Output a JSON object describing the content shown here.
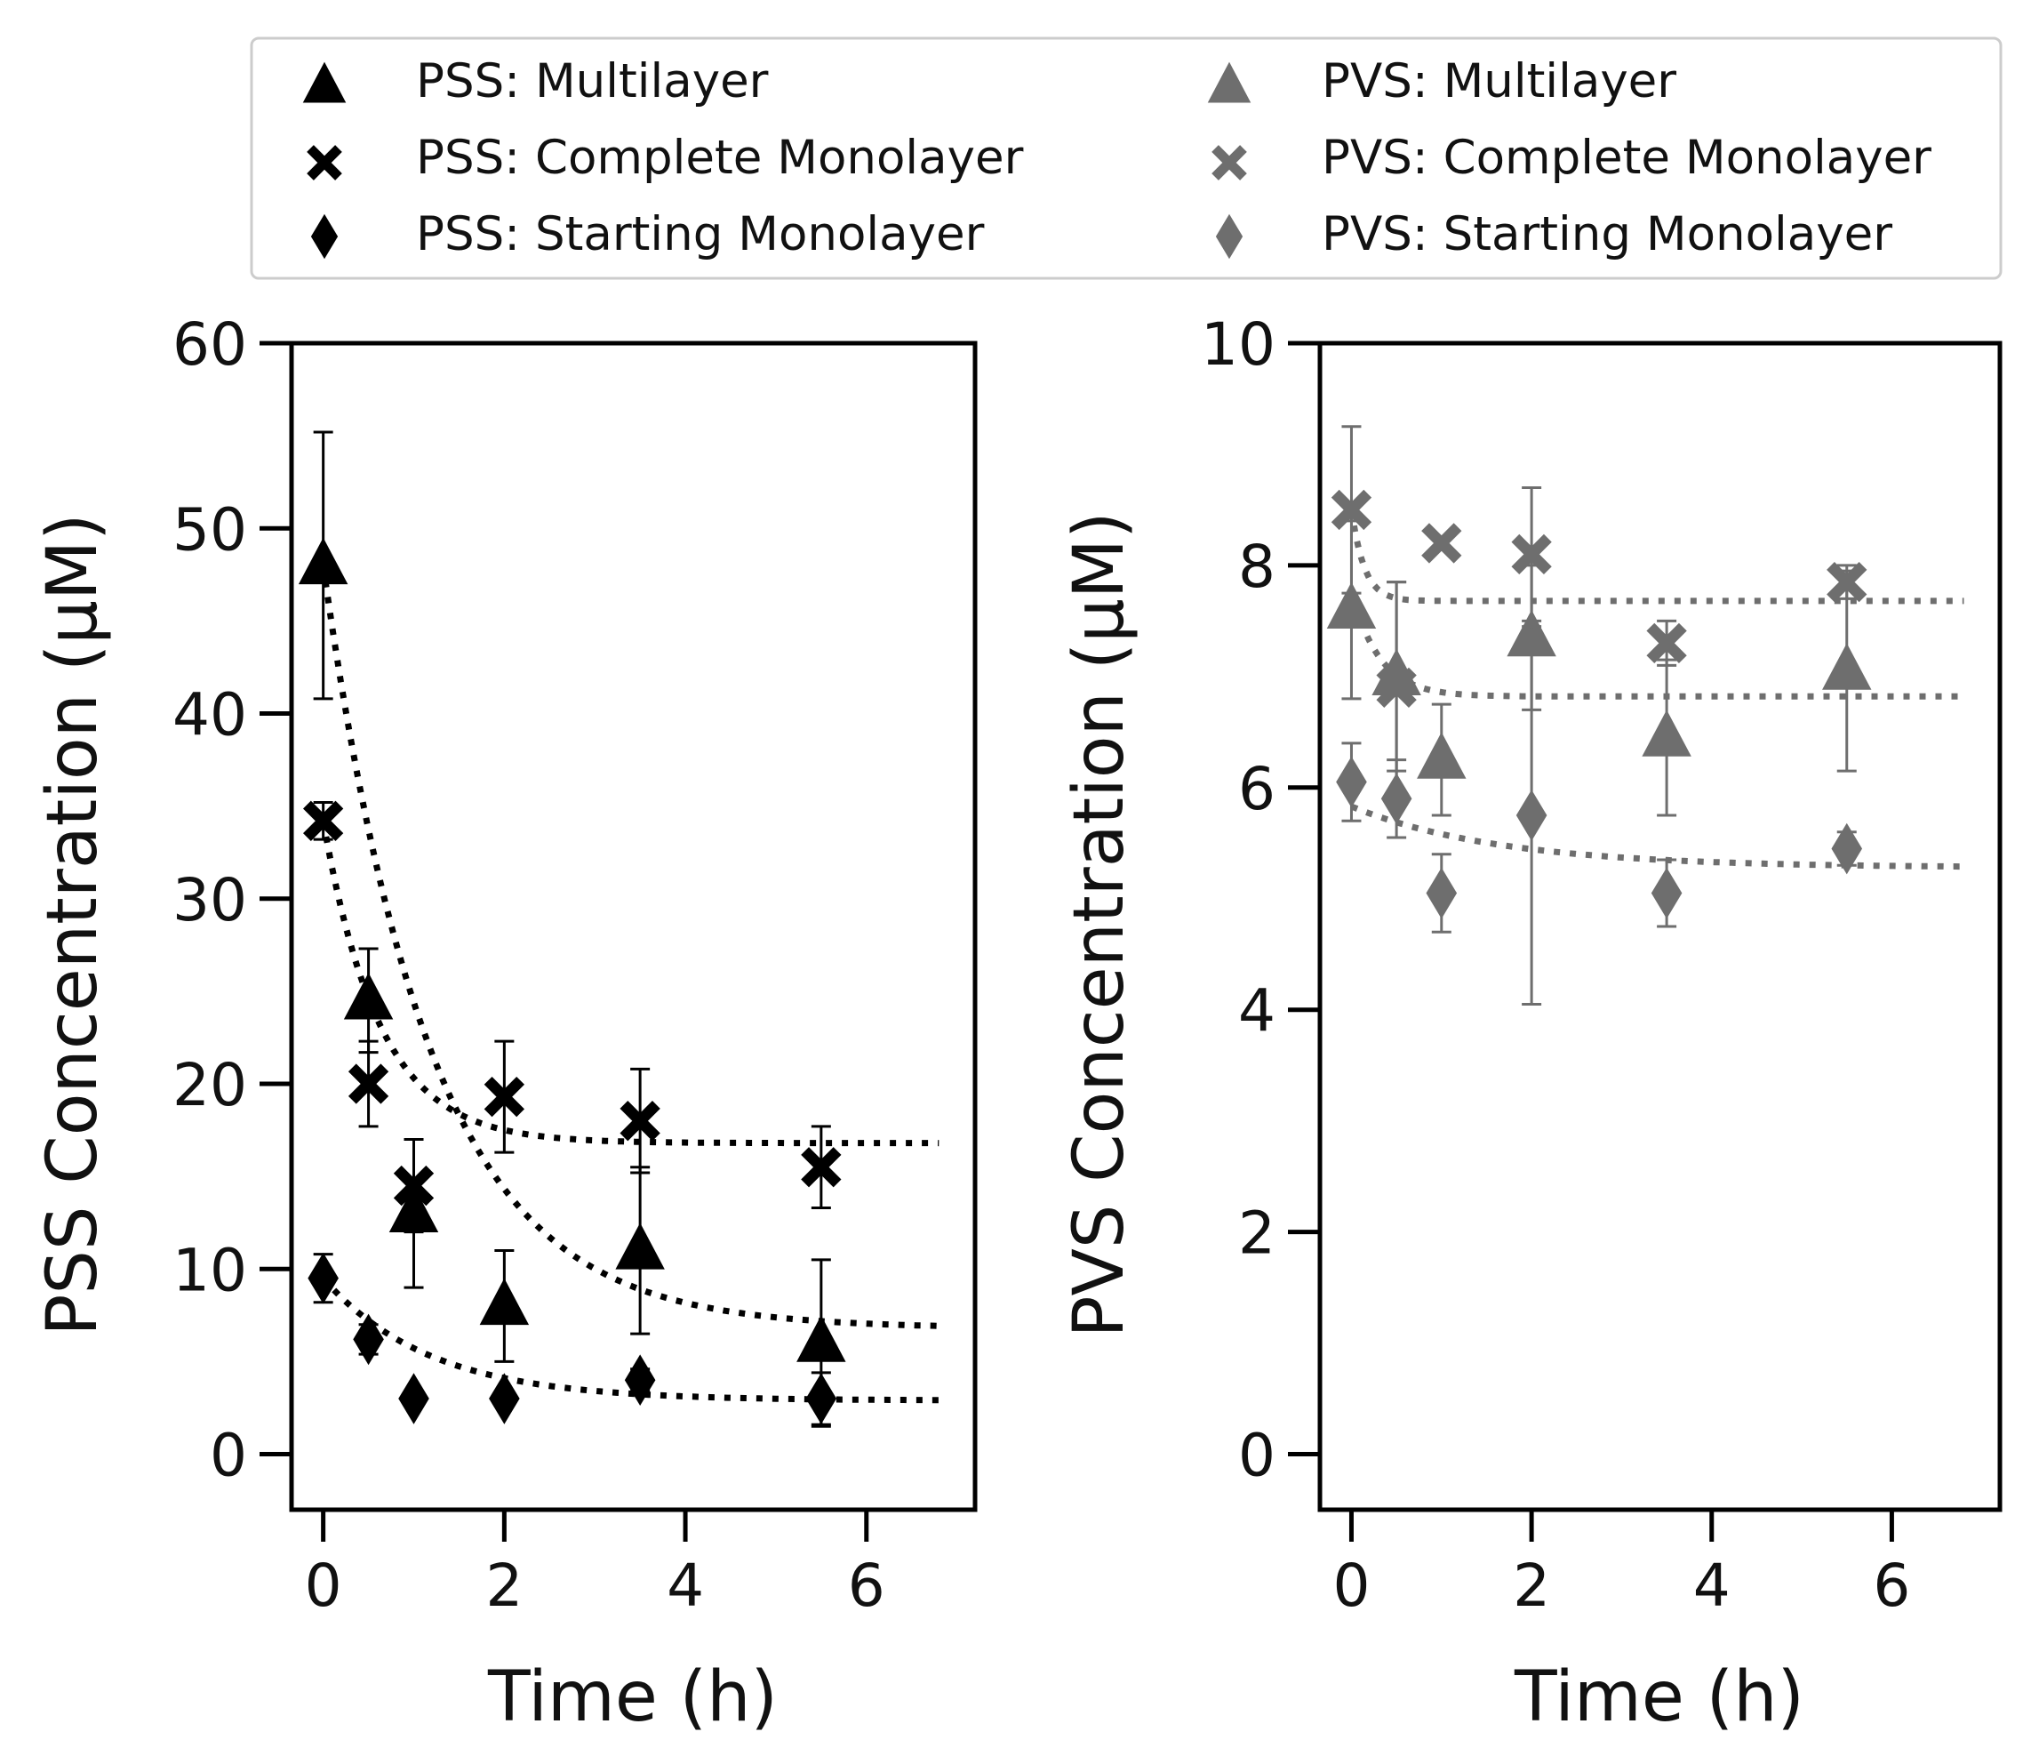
{
  "chart_data": [
    {
      "type": "scatter",
      "panel": "left",
      "xlabel": "Time (h)",
      "ylabel": "PSS Concentration (µM)",
      "xlim": [
        -0.35,
        7.2
      ],
      "ylim": [
        -3,
        60
      ],
      "xticks": [
        0,
        2,
        4,
        6
      ],
      "yticks": [
        0,
        10,
        20,
        30,
        40,
        50,
        60
      ],
      "color": "#000000",
      "series": [
        {
          "name": "PSS: Multilayer",
          "marker": "triangle",
          "x": [
            0,
            0.5,
            1,
            2,
            3.5,
            5.5
          ],
          "y": [
            48,
            24.5,
            13,
            8,
            11,
            6
          ],
          "err": [
            7.2,
            2.8,
            4,
            3,
            4.5,
            4.5
          ]
        },
        {
          "name": "PSS: Complete Monolayer",
          "marker": "x",
          "x": [
            0,
            0.5,
            1,
            2,
            3.5,
            5.5
          ],
          "y": [
            34.2,
            20,
            14.5,
            19.3,
            18,
            15.5
          ],
          "err": [
            1,
            2.3,
            2.5,
            3,
            2.8,
            2.2
          ]
        },
        {
          "name": "PSS: Starting Monolayer",
          "marker": "diamond",
          "x": [
            0,
            0.5,
            1,
            2,
            3.5,
            5.5
          ],
          "y": [
            9.5,
            6.2,
            3,
            3,
            4,
            3
          ],
          "err": [
            1.3,
            0.8,
            0,
            0,
            0.6,
            1.4
          ]
        }
      ],
      "fits": [
        {
          "name": "Multilayer fit",
          "A": 6.8,
          "B": 41.2,
          "k": 0.85
        },
        {
          "name": "Complete Monolayer fit",
          "A": 16.8,
          "B": 17.4,
          "k": 1.6
        },
        {
          "name": "Starting Monolayer fit",
          "A": 2.9,
          "B": 6.6,
          "k": 0.85
        }
      ]
    },
    {
      "type": "scatter",
      "panel": "right",
      "xlabel": "Time (h)",
      "ylabel": "PVS Concentration (µM)",
      "xlim": [
        -0.35,
        7.2
      ],
      "ylim": [
        -0.5,
        10
      ],
      "xticks": [
        0,
        2,
        4,
        6
      ],
      "yticks": [
        0,
        2,
        4,
        6,
        8,
        10
      ],
      "color": "#6e6e6e",
      "series": [
        {
          "name": "PVS: Multilayer",
          "marker": "triangle",
          "x": [
            0,
            0.5,
            1,
            2,
            3.5,
            5.5
          ],
          "y": [
            7.6,
            7,
            6.25,
            7.35,
            6.45,
            7.05
          ],
          "err": [
            0.8,
            0.85,
            0.5,
            0.65,
            0.7,
            0.9
          ]
        },
        {
          "name": "PVS: Complete Monolayer",
          "marker": "x",
          "x": [
            0,
            0.5,
            1,
            2,
            3.5,
            5.5
          ],
          "y": [
            8.5,
            6.9,
            8.2,
            8.1,
            7.3,
            7.85
          ],
          "err": [
            0.75,
            0.95,
            0,
            0.6,
            0.2,
            0.15
          ]
        },
        {
          "name": "PVS: Starting Monolayer",
          "marker": "diamond",
          "x": [
            0,
            0.5,
            1,
            2,
            3.5,
            5.5
          ],
          "y": [
            6.05,
            5.9,
            5.05,
            5.75,
            5.05,
            5.45
          ],
          "err": [
            0.35,
            0.35,
            0.35,
            1.7,
            0.3,
            0.15
          ]
        }
      ],
      "fits": [
        {
          "name": "Complete Monolayer fit",
          "A": 7.68,
          "B": 0.82,
          "k": 7
        },
        {
          "name": "Multilayer fit",
          "A": 6.82,
          "B": 0.95,
          "k": 3.2
        },
        {
          "name": "Starting Monolayer fit",
          "A": 5.28,
          "B": 0.55,
          "k": 0.6
        }
      ]
    }
  ],
  "legend": {
    "items": [
      {
        "label": "PSS: Multilayer",
        "marker": "triangle",
        "color": "#000000"
      },
      {
        "label": "PSS: Complete Monolayer",
        "marker": "x",
        "color": "#000000"
      },
      {
        "label": "PSS: Starting Monolayer",
        "marker": "diamond",
        "color": "#000000"
      },
      {
        "label": "PVS: Multilayer",
        "marker": "triangle",
        "color": "#6e6e6e"
      },
      {
        "label": "PVS: Complete Monolayer",
        "marker": "x",
        "color": "#6e6e6e"
      },
      {
        "label": "PVS: Starting Monolayer",
        "marker": "diamond",
        "color": "#6e6e6e"
      }
    ]
  }
}
